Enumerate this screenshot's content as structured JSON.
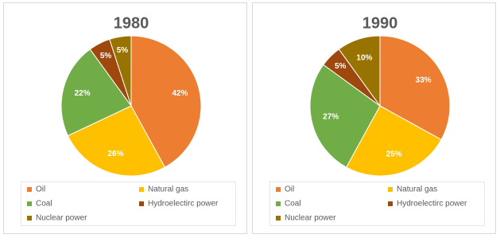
{
  "chart_data": [
    {
      "type": "pie",
      "title": "1980",
      "categories": [
        "Oil",
        "Natural gas",
        "Coal",
        "Hydroelectirc power",
        "Nuclear power"
      ],
      "values": [
        42,
        26,
        22,
        5,
        5
      ],
      "value_labels": [
        "42%",
        "26%",
        "22%",
        "5%",
        "5%"
      ],
      "colors": [
        "#ED7D31",
        "#FFC000",
        "#70AD47",
        "#9E480E",
        "#997300"
      ]
    },
    {
      "type": "pie",
      "title": "1990",
      "categories": [
        "Oil",
        "Natural gas",
        "Coal",
        "Hydroelectirc power",
        "Nuclear power"
      ],
      "values": [
        33,
        25,
        27,
        5,
        10
      ],
      "value_labels": [
        "33%",
        "25%",
        "27%",
        "5%",
        "10%"
      ],
      "colors": [
        "#ED7D31",
        "#FFC000",
        "#70AD47",
        "#9E480E",
        "#997300"
      ]
    }
  ]
}
